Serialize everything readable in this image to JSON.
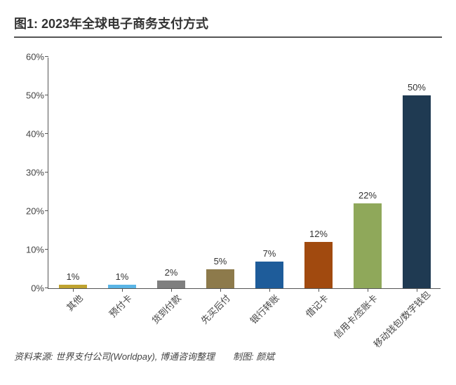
{
  "chart": {
    "type": "bar",
    "title": "图1: 2023年全球电子商务支付方式",
    "title_fontsize": 18,
    "title_color": "#333333",
    "source_line": "资料来源: 世界支付公司(Worldpay), 博通咨询整理  制图: 颜斌",
    "source_fontsize": 13,
    "source_color": "#444444",
    "background_color": "#ffffff",
    "axis_color": "#555555",
    "ylabel_fontsize": 13,
    "xlabel_fontsize": 13,
    "value_label_fontsize": 13,
    "ylim": [
      0,
      60
    ],
    "ytick_step": 10,
    "y_ticks": [
      "0%",
      "10%",
      "20%",
      "30%",
      "40%",
      "50%",
      "60%"
    ],
    "categories": [
      "其他",
      "预付卡",
      "货到付款",
      "先买后付",
      "银行转账",
      "借记卡",
      "信用卡/签账卡",
      "移动钱包/数字钱包"
    ],
    "values": [
      1,
      1,
      2,
      5,
      7,
      12,
      22,
      50
    ],
    "value_labels": [
      "1%",
      "1%",
      "2%",
      "5%",
      "7%",
      "12%",
      "22%",
      "50%"
    ],
    "bar_colors": [
      "#bfa330",
      "#5ab5e6",
      "#7f7f7f",
      "#8d7a4b",
      "#1e5c9a",
      "#a14a0f",
      "#8fa85a",
      "#1f3a52"
    ],
    "bar_width": 0.56,
    "xlabel_rotation": -45,
    "grid": false
  }
}
